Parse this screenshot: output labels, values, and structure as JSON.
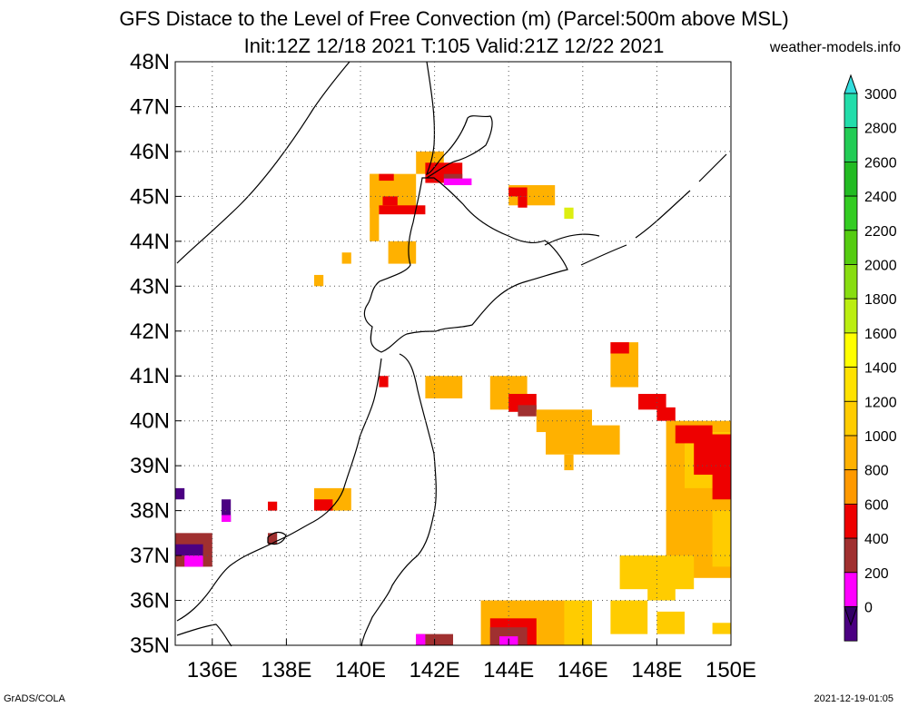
{
  "header": {
    "title_line1": "GFS Distace to the Level of Free Convection (m) (Parcel:500m above MSL)",
    "title_line2": "Init:12Z 12/18 2021 T:105 Valid:21Z 12/22 2021",
    "site": "weather-models.info"
  },
  "axes": {
    "lat_labels": [
      "48N",
      "47N",
      "46N",
      "45N",
      "44N",
      "43N",
      "42N",
      "41N",
      "40N",
      "39N",
      "38N",
      "37N",
      "36N",
      "35N"
    ],
    "lon_labels": [
      "136E",
      "138E",
      "140E",
      "142E",
      "144E",
      "146E",
      "148E",
      "150E"
    ]
  },
  "colorbar": {
    "labels": [
      "3000",
      "2800",
      "2600",
      "2400",
      "2200",
      "2000",
      "1800",
      "1600",
      "1400",
      "1200",
      "1000",
      "800",
      "600",
      "400",
      "200",
      "0"
    ],
    "colors": [
      "#33eeee",
      "#22ddaa",
      "#22cc55",
      "#22bb22",
      "#33cc22",
      "#55cc11",
      "#88dd11",
      "#bbee11",
      "#ffff00",
      "#ffe200",
      "#ffcc00",
      "#ffb100",
      "#ff9900",
      "#ee0000",
      "#a03030",
      "#ff00ff",
      "#4b0082"
    ],
    "top_arrow_color": "#33dddd",
    "bottom_arrow_color": "#330066"
  },
  "footer": {
    "left": "GrADS/COLA",
    "right": "2021-12-19-01:05"
  }
}
